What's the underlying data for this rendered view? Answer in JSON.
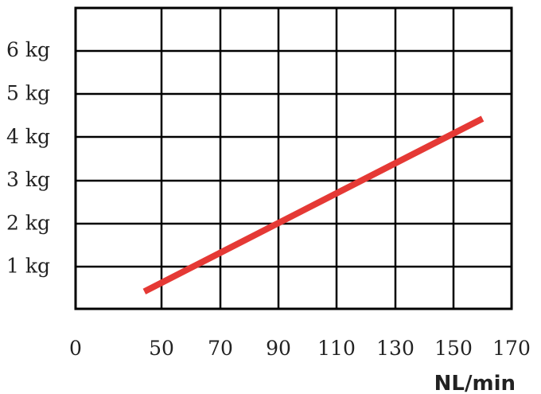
{
  "chart_data": {
    "type": "line",
    "x_tick_labels": [
      "0",
      "50",
      "70",
      "90",
      "110",
      "130",
      "150",
      "170"
    ],
    "y_tick_labels": [
      "1 kg",
      "2 kg",
      "3 kg",
      "4 kg",
      "5 kg",
      "6 kg"
    ],
    "xlabel": "NL/min",
    "ylabel": "",
    "grid": true,
    "series": [
      {
        "x": [
          40,
          160
        ],
        "y": [
          0.4,
          4.4
        ]
      }
    ],
    "colors": {
      "line": "#e53935",
      "grid": "#000000"
    }
  }
}
